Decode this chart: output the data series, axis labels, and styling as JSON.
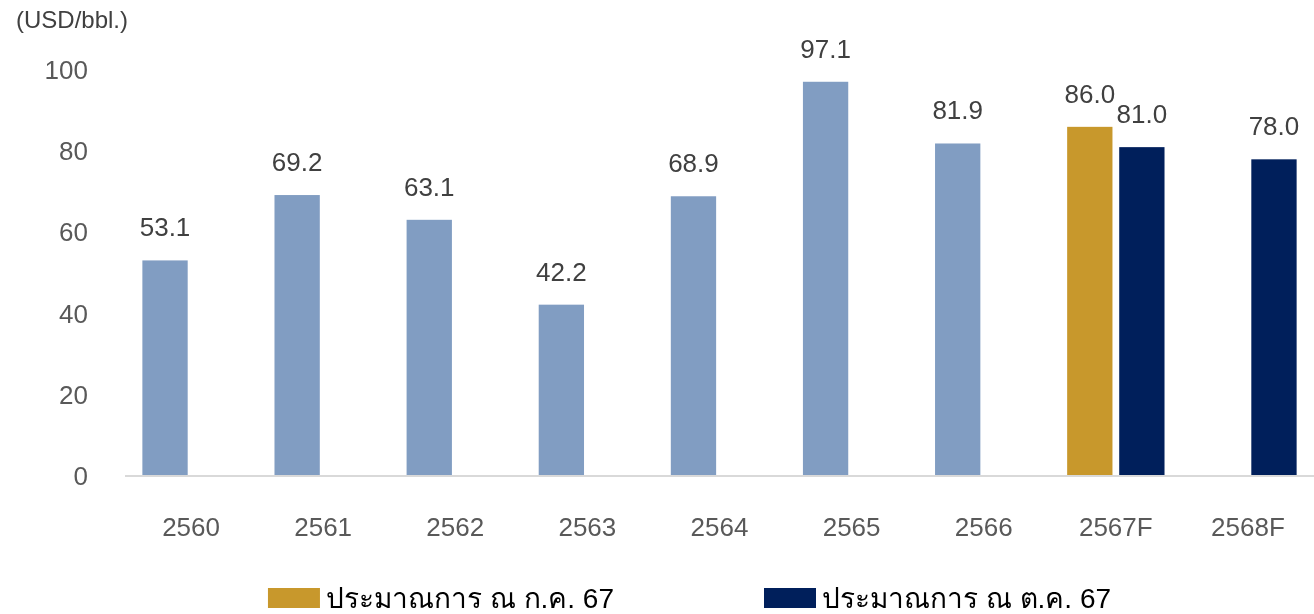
{
  "chart_data": {
    "type": "bar",
    "ylabel": "(USD/bbl.)",
    "categories": [
      "2560",
      "2561",
      "2562",
      "2563",
      "2564",
      "2565",
      "2566",
      "2567F",
      "2568F"
    ],
    "series": [
      {
        "color": "#819dc2",
        "values": [
          53.1,
          69.2,
          63.1,
          42.2,
          68.9,
          97.1,
          81.9,
          null,
          null
        ],
        "value_labels": [
          "53.1",
          "69.2",
          "63.1",
          "42.2",
          "68.9",
          "97.1",
          "81.9",
          null,
          null
        ]
      },
      {
        "name": "ประมาณการ ณ ก.ค. 67",
        "color": "#c8982c",
        "values": [
          null,
          null,
          null,
          null,
          null,
          null,
          null,
          86.0,
          null
        ],
        "value_labels": [
          null,
          null,
          null,
          null,
          null,
          null,
          null,
          "86.0",
          null
        ]
      },
      {
        "name": "ประมาณการ ณ ต.ค. 67",
        "color": "#001f5b",
        "values": [
          null,
          null,
          null,
          null,
          null,
          null,
          null,
          81.0,
          78.0
        ],
        "value_labels": [
          null,
          null,
          null,
          null,
          null,
          null,
          null,
          "81.0",
          "78.0"
        ]
      }
    ],
    "ylim": [
      0,
      100
    ],
    "yticks": [
      0,
      20,
      40,
      60,
      80,
      100
    ],
    "legend": "bottom"
  }
}
